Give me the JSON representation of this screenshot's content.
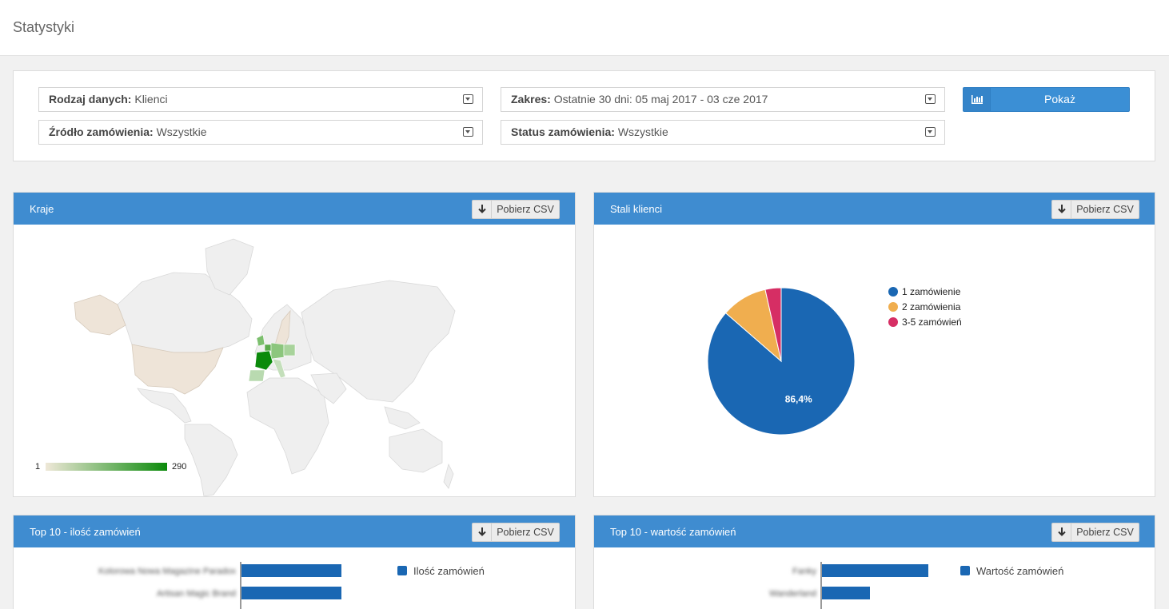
{
  "header": {
    "title": "Statystyki"
  },
  "filters": {
    "data_type": {
      "label": "Rodzaj danych:",
      "value": "Klienci"
    },
    "range": {
      "label": "Zakres:",
      "value": "Ostatnie 30 dni: 05 maj 2017 - 03 cze 2017"
    },
    "source": {
      "label": "Źródło zamówienia:",
      "value": "Wszystkie"
    },
    "status": {
      "label": "Status zamówienia:",
      "value": "Wszystkie"
    },
    "show_button": "Pokaż"
  },
  "csv_label": "Pobierz CSV",
  "panels": {
    "countries": {
      "title": "Kraje",
      "scale_min": "1",
      "scale_max": "290"
    },
    "loyal": {
      "title": "Stali klienci",
      "chart_data": {
        "type": "pie",
        "categories": [
          "1 zamówienie",
          "2 zamówienia",
          "3-5 zamówień"
        ],
        "values": [
          86.4,
          10.1,
          3.5
        ],
        "colors": [
          "#1a67b3",
          "#f0ae4f",
          "#d62e64"
        ],
        "data_labels": [
          "86,4%",
          "",
          ""
        ],
        "legend": "right"
      }
    },
    "top_count": {
      "title": "Top 10 - ilość zamówień",
      "chart_data": {
        "type": "bar",
        "categories": [
          "Kolorowa Nowa Magazine Paradox",
          "Artisan Magic Brand"
        ],
        "series": [
          {
            "name": "Ilość zamówień",
            "values": [
              125,
              125
            ]
          }
        ],
        "color": "#1a67b3"
      }
    },
    "top_value": {
      "title": "Top 10 - wartość zamówień",
      "chart_data": {
        "type": "bar",
        "categories": [
          "Fanky",
          "Wanderland"
        ],
        "series": [
          {
            "name": "Wartość zamówień",
            "values": [
              133,
              60
            ]
          }
        ],
        "color": "#1a67b3"
      }
    }
  }
}
